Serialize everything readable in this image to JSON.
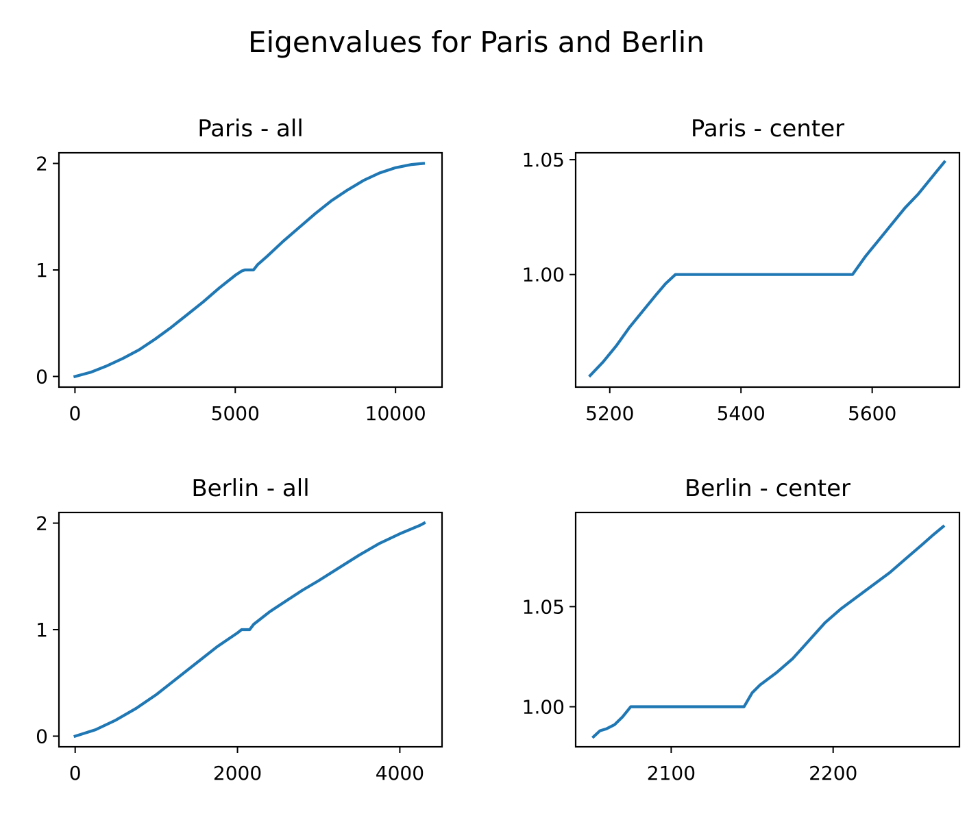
{
  "figure": {
    "title": "Eigenvalues for Paris and Berlin"
  },
  "chart_data": [
    {
      "type": "line",
      "title": "Paris - all",
      "xlabel": "",
      "ylabel": "",
      "xlim": [
        -500,
        11450
      ],
      "ylim": [
        -0.1,
        2.1
      ],
      "xticks": [
        0,
        5000,
        10000
      ],
      "xtick_labels": [
        "0",
        "5000",
        "10000"
      ],
      "yticks": [
        0,
        1,
        2
      ],
      "ytick_labels": [
        "0",
        "1",
        "2"
      ],
      "color": "#1f77b4",
      "series": [
        {
          "x": [
            0,
            500,
            1000,
            1500,
            2000,
            2500,
            3000,
            3500,
            4000,
            4500,
            5000,
            5200,
            5300,
            5570,
            5700,
            6000,
            6500,
            7000,
            7500,
            8000,
            8500,
            9000,
            9500,
            10000,
            10500,
            10870
          ],
          "y": [
            0,
            0.04,
            0.1,
            0.17,
            0.25,
            0.35,
            0.46,
            0.58,
            0.7,
            0.83,
            0.95,
            0.99,
            1.0,
            1.0,
            1.05,
            1.13,
            1.27,
            1.4,
            1.53,
            1.65,
            1.75,
            1.84,
            1.91,
            1.96,
            1.99,
            2.0
          ]
        }
      ]
    },
    {
      "type": "line",
      "title": "Paris - center",
      "xlabel": "",
      "ylabel": "",
      "xlim": [
        5148,
        5733
      ],
      "ylim": [
        0.951,
        1.053
      ],
      "xticks": [
        5200,
        5400,
        5600
      ],
      "xtick_labels": [
        "5200",
        "5400",
        "5600"
      ],
      "yticks": [
        1.0,
        1.05
      ],
      "ytick_labels": [
        "1.00",
        "1.05"
      ],
      "color": "#1f77b4",
      "series": [
        {
          "x": [
            5170,
            5190,
            5210,
            5230,
            5250,
            5270,
            5285,
            5300,
            5350,
            5400,
            5450,
            5500,
            5550,
            5570,
            5590,
            5610,
            5630,
            5650,
            5670,
            5690,
            5710
          ],
          "y": [
            0.956,
            0.962,
            0.969,
            0.977,
            0.984,
            0.991,
            0.996,
            1.0,
            1.0,
            1.0,
            1.0,
            1.0,
            1.0,
            1.0,
            1.008,
            1.015,
            1.022,
            1.029,
            1.035,
            1.042,
            1.049
          ]
        }
      ]
    },
    {
      "type": "line",
      "title": "Berlin - all",
      "xlabel": "",
      "ylabel": "",
      "xlim": [
        -200,
        4520
      ],
      "ylim": [
        -0.1,
        2.1
      ],
      "xticks": [
        0,
        2000,
        4000
      ],
      "xtick_labels": [
        "0",
        "2000",
        "4000"
      ],
      "yticks": [
        0,
        1,
        2
      ],
      "ytick_labels": [
        "0",
        "1",
        "2"
      ],
      "color": "#1f77b4",
      "series": [
        {
          "x": [
            0,
            250,
            500,
            750,
            1000,
            1250,
            1500,
            1750,
            2000,
            2050,
            2150,
            2200,
            2400,
            2600,
            2800,
            3000,
            3250,
            3500,
            3750,
            4000,
            4250,
            4300
          ],
          "y": [
            0,
            0.06,
            0.15,
            0.26,
            0.39,
            0.54,
            0.69,
            0.84,
            0.97,
            1.0,
            1.0,
            1.05,
            1.17,
            1.27,
            1.37,
            1.46,
            1.58,
            1.7,
            1.81,
            1.9,
            1.98,
            2.0
          ]
        }
      ]
    },
    {
      "type": "line",
      "title": "Berlin - center",
      "xlabel": "",
      "ylabel": "",
      "xlim": [
        2041,
        2278
      ],
      "ylim": [
        0.98,
        1.097
      ],
      "xticks": [
        2100,
        2200
      ],
      "xtick_labels": [
        "2100",
        "2200"
      ],
      "yticks": [
        1.0,
        1.05
      ],
      "ytick_labels": [
        "1.00",
        "1.05"
      ],
      "color": "#1f77b4",
      "series": [
        {
          "x": [
            2052,
            2056,
            2060,
            2065,
            2070,
            2073,
            2075,
            2090,
            2110,
            2130,
            2145,
            2150,
            2155,
            2165,
            2175,
            2185,
            2195,
            2205,
            2215,
            2225,
            2235,
            2245,
            2255,
            2262,
            2268
          ],
          "y": [
            0.985,
            0.988,
            0.989,
            0.991,
            0.995,
            0.998,
            1.0,
            1.0,
            1.0,
            1.0,
            1.0,
            1.007,
            1.011,
            1.017,
            1.024,
            1.033,
            1.042,
            1.049,
            1.055,
            1.061,
            1.067,
            1.074,
            1.081,
            1.086,
            1.09
          ]
        }
      ]
    }
  ]
}
